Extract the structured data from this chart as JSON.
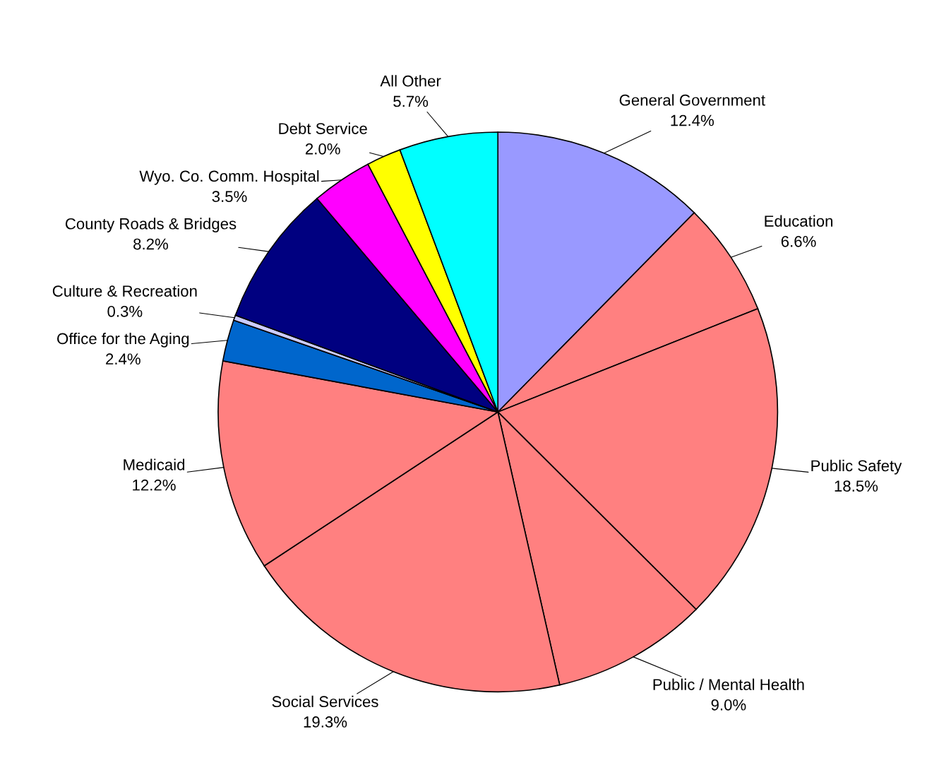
{
  "chart_data": {
    "type": "pie",
    "categories": [
      "General Government",
      "Education",
      "Public Safety",
      "Public / Mental Health",
      "Social Services",
      "Medicaid",
      "Office for the Aging",
      "Culture & Recreation",
      "County Roads & Bridges",
      "Wyo. Co. Comm. Hospital",
      "Debt Service",
      "All Other"
    ],
    "values": [
      12.4,
      6.6,
      18.5,
      9.0,
      19.3,
      12.2,
      2.4,
      0.3,
      8.2,
      3.5,
      2.0,
      5.7
    ],
    "value_labels": [
      "12.4%",
      "6.6%",
      "18.5%",
      "9.0%",
      "19.3%",
      "12.2%",
      "2.4%",
      "0.3%",
      "8.2%",
      "3.5%",
      "2.0%",
      "5.7%"
    ],
    "colors": [
      "#9999ff",
      "#ff8080",
      "#ff8080",
      "#ff8080",
      "#ff8080",
      "#ff8080",
      "#0066cc",
      "#ccccff",
      "#000080",
      "#ff00ff",
      "#ffff00",
      "#00ffff"
    ],
    "legend": false
  }
}
